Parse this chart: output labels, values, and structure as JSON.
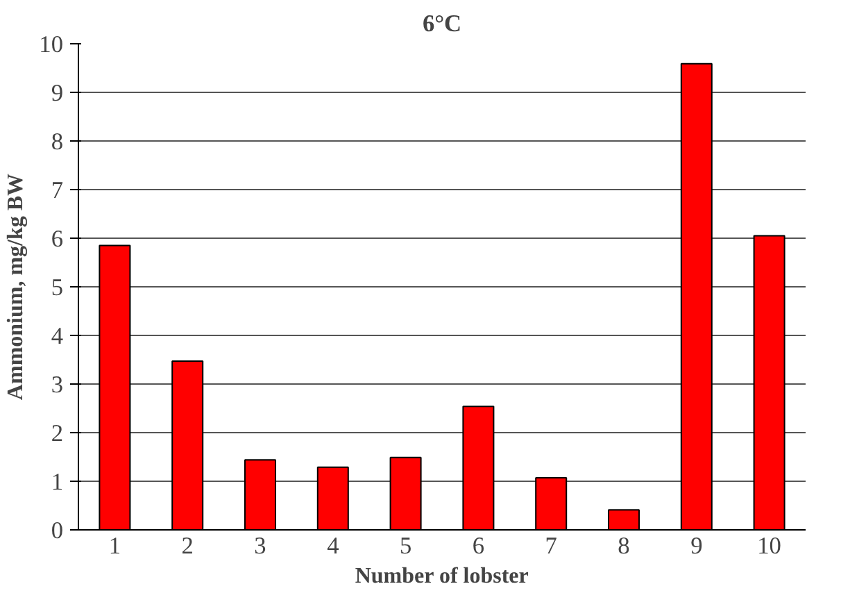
{
  "chart_data": {
    "type": "bar",
    "title": "6°C",
    "xlabel": "Number of lobster",
    "ylabel": "Ammonium, mg/kg BW",
    "categories": [
      "1",
      "2",
      "3",
      "4",
      "5",
      "6",
      "7",
      "8",
      "9",
      "10"
    ],
    "values": [
      5.85,
      3.47,
      1.44,
      1.29,
      1.49,
      2.54,
      1.07,
      0.41,
      9.59,
      6.05
    ],
    "color": "#ff0000",
    "ylim": [
      0,
      10
    ],
    "yticks": [
      0,
      1,
      2,
      3,
      4,
      5,
      6,
      7,
      8,
      9,
      10
    ],
    "grid": "y"
  }
}
